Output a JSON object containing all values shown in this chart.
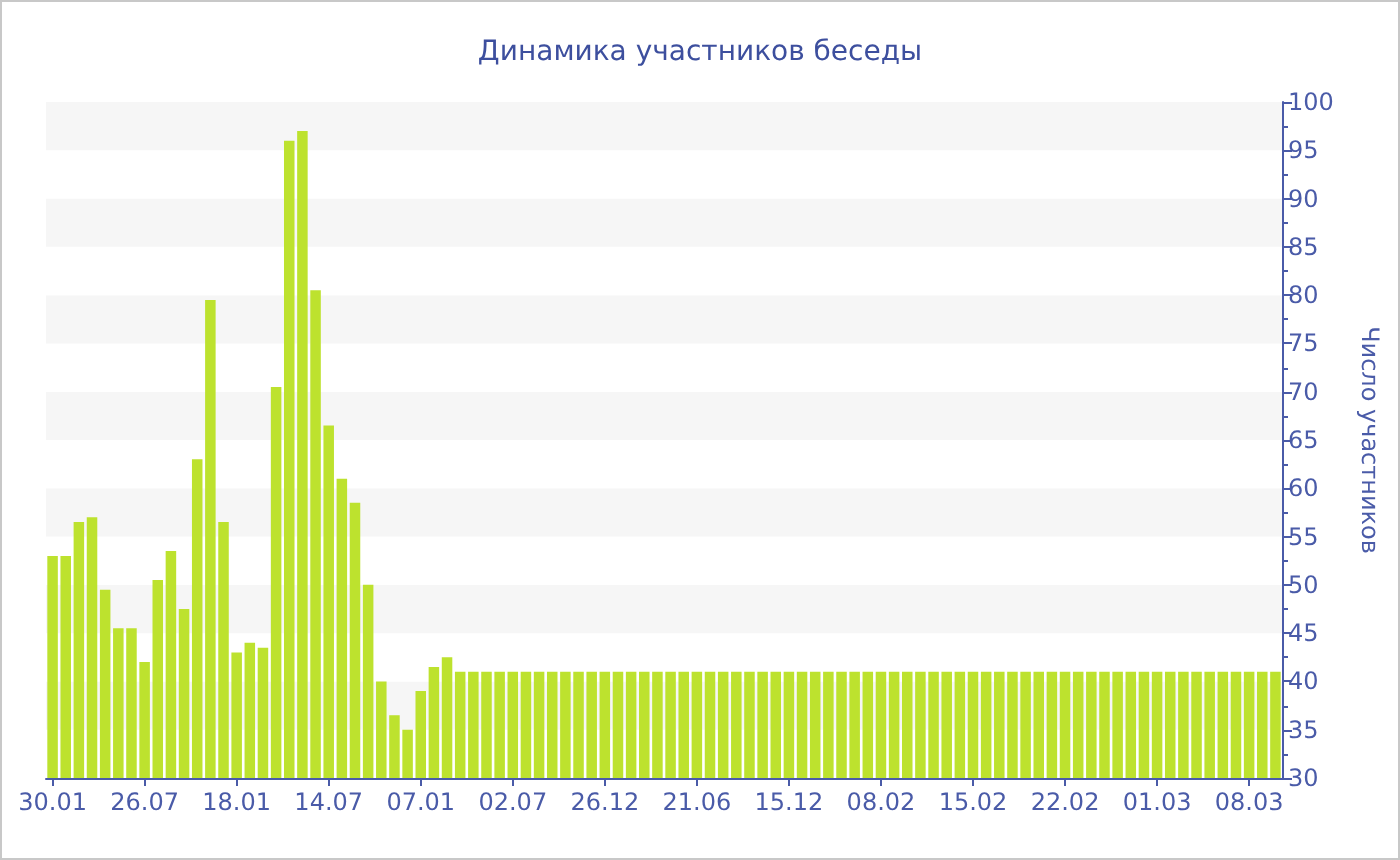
{
  "chart_data": {
    "type": "bar",
    "title": "Динамика участников беседы",
    "ylabel": "Число участников",
    "categories": [
      "30.01",
      null,
      null,
      null,
      null,
      null,
      null,
      "26.07",
      null,
      null,
      null,
      null,
      null,
      null,
      "18.01",
      null,
      null,
      null,
      null,
      null,
      null,
      "14.07",
      null,
      null,
      null,
      null,
      null,
      null,
      "07.01",
      null,
      null,
      null,
      null,
      null,
      null,
      "02.07",
      null,
      null,
      null,
      null,
      null,
      null,
      "26.12",
      null,
      null,
      null,
      null,
      null,
      null,
      "21.06",
      null,
      null,
      null,
      null,
      null,
      null,
      "15.12",
      null,
      null,
      null,
      null,
      null,
      null,
      "08.02",
      null,
      null,
      null,
      null,
      null,
      null,
      "15.02",
      null,
      null,
      null,
      null,
      null,
      null,
      "22.02",
      null,
      null,
      null,
      null,
      null,
      null,
      "01.03",
      null,
      null,
      null,
      null,
      null,
      null,
      "08.03",
      null,
      null
    ],
    "values": [
      53,
      53,
      56.5,
      57,
      49.5,
      45.5,
      45.5,
      42,
      50.5,
      53.5,
      47.5,
      63,
      79.5,
      56.5,
      43,
      44,
      43.5,
      70.5,
      96,
      97,
      80.5,
      66.5,
      61,
      58.5,
      50,
      40,
      36.5,
      35,
      39,
      41.5,
      42.5,
      41,
      41,
      41,
      41,
      41,
      41,
      41,
      41,
      41,
      41,
      41,
      41,
      41,
      41,
      41,
      41,
      41,
      41,
      41,
      41,
      41,
      41,
      41,
      41,
      41,
      41,
      41,
      41,
      41,
      41,
      41,
      41,
      41,
      41,
      41,
      41,
      41,
      41,
      41,
      41,
      41,
      41,
      41,
      41,
      41,
      41,
      41,
      41,
      41,
      41,
      41,
      41,
      41,
      41,
      41,
      41,
      41,
      41,
      41,
      41,
      41,
      41,
      41
    ],
    "color": "#bde22e",
    "ylim": [
      30,
      100
    ],
    "yticks": [
      30,
      {
        "value": 32.5,
        "label": null
      },
      35,
      {
        "value": 37.5,
        "label": null
      },
      40,
      {
        "value": 42.5,
        "label": null
      },
      45,
      {
        "value": 47.5,
        "label": null
      },
      50,
      {
        "value": 52.5,
        "label": null
      },
      55,
      {
        "value": 57.5,
        "label": null
      },
      60,
      {
        "value": 62.5,
        "label": null
      },
      65,
      {
        "value": 67.5,
        "label": null
      },
      70,
      {
        "value": 72.5,
        "label": null
      },
      75,
      {
        "value": 77.5,
        "label": null
      },
      80,
      {
        "value": 82.5,
        "label": null
      },
      85,
      {
        "value": 87.5,
        "label": null
      },
      90,
      {
        "value": 92.5,
        "label": null
      },
      95,
      {
        "value": 97.5,
        "label": null
      },
      100
    ]
  }
}
